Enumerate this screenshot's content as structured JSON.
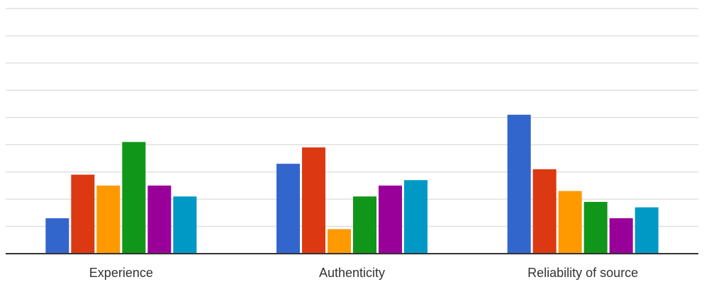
{
  "chart_data": {
    "type": "bar",
    "title": "",
    "xlabel": "",
    "ylabel": "",
    "ylim": [
      0,
      9
    ],
    "grid": true,
    "legend": "none",
    "categories": [
      "Experience",
      "Authenticity",
      "Reliability of source"
    ],
    "series": [
      {
        "color": "#3366cc",
        "values": [
          1.3,
          3.3,
          5.1
        ]
      },
      {
        "color": "#dc3912",
        "values": [
          2.9,
          3.9,
          3.1
        ]
      },
      {
        "color": "#ff9900",
        "values": [
          2.5,
          0.9,
          2.3
        ]
      },
      {
        "color": "#109618",
        "values": [
          4.1,
          2.1,
          1.9
        ]
      },
      {
        "color": "#990099",
        "values": [
          2.5,
          2.5,
          1.3
        ]
      },
      {
        "color": "#0099c6",
        "values": [
          2.1,
          2.7,
          1.7
        ]
      }
    ]
  }
}
